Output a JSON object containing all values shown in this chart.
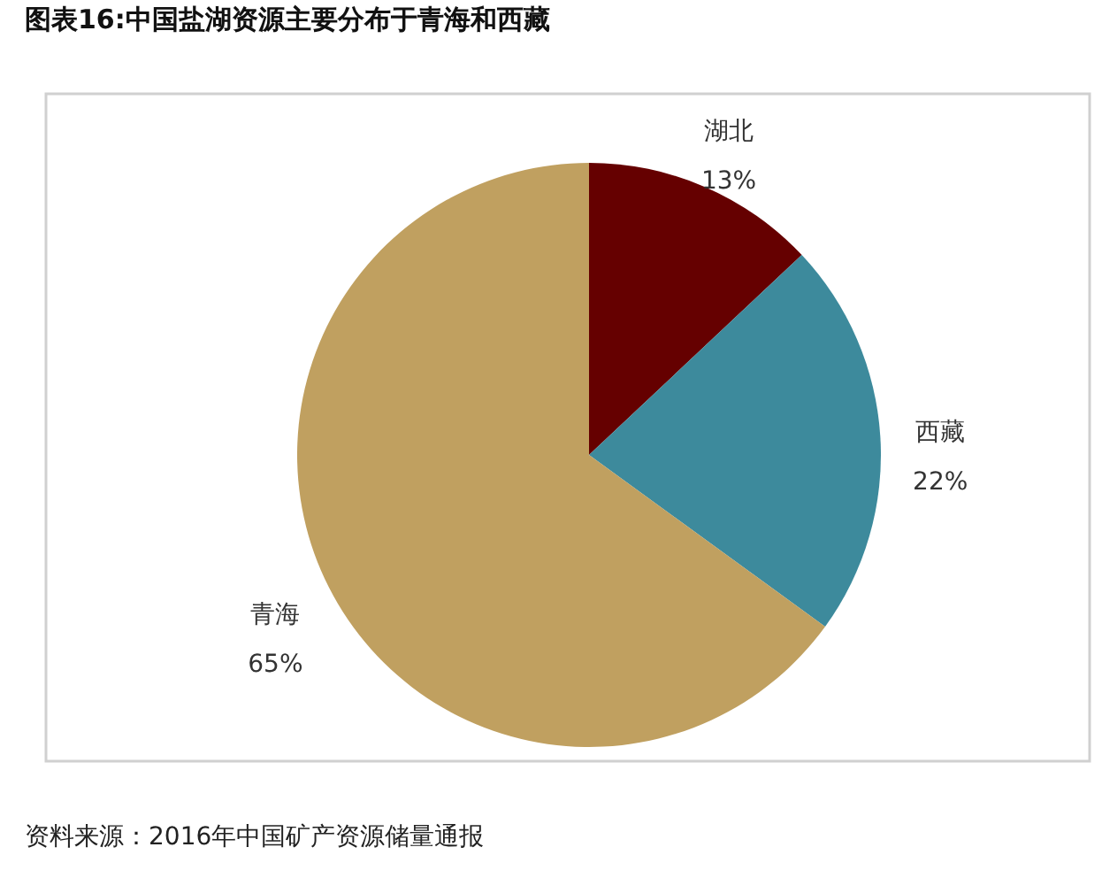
{
  "chart_data": {
    "type": "pie",
    "title": "图表16:中国盐湖资源主要分布于青海和西藏",
    "categories": [
      "湖北",
      "西藏",
      "青海"
    ],
    "values": [
      13,
      22,
      65
    ],
    "colors": [
      "#650000",
      "#3d8a9c",
      "#c0a060"
    ],
    "value_labels": [
      "13%",
      "22%",
      "65%"
    ],
    "annotations": [
      "资料来源：2016年中国矿产资源储量通报"
    ]
  }
}
